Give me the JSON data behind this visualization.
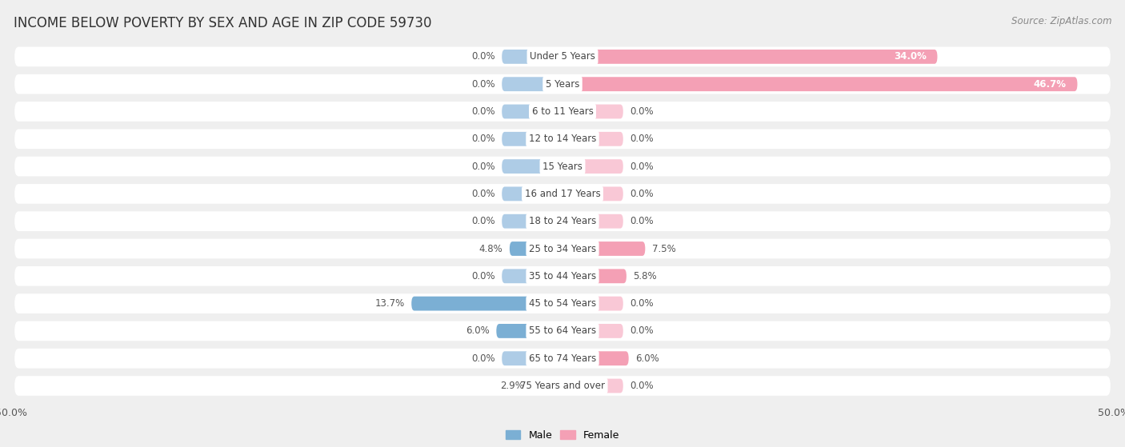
{
  "title": "INCOME BELOW POVERTY BY SEX AND AGE IN ZIP CODE 59730",
  "source": "Source: ZipAtlas.com",
  "categories": [
    "Under 5 Years",
    "5 Years",
    "6 to 11 Years",
    "12 to 14 Years",
    "15 Years",
    "16 and 17 Years",
    "18 to 24 Years",
    "25 to 34 Years",
    "35 to 44 Years",
    "45 to 54 Years",
    "55 to 64 Years",
    "65 to 74 Years",
    "75 Years and over"
  ],
  "male": [
    0.0,
    0.0,
    0.0,
    0.0,
    0.0,
    0.0,
    0.0,
    4.8,
    0.0,
    13.7,
    6.0,
    0.0,
    2.9
  ],
  "female": [
    34.0,
    46.7,
    0.0,
    0.0,
    0.0,
    0.0,
    0.0,
    7.5,
    5.8,
    0.0,
    0.0,
    6.0,
    0.0
  ],
  "male_color": "#7bafd4",
  "female_color": "#f4a0b5",
  "male_color_light": "#aecce6",
  "female_color_light": "#f9c8d6",
  "bar_height": 0.52,
  "stub_size": 5.5,
  "xlim": 50.0,
  "background_color": "#efefef",
  "row_bg_color": "#ffffff",
  "row_border_color": "#e0e0e0",
  "title_fontsize": 12,
  "source_fontsize": 8.5,
  "label_fontsize": 8.5,
  "axis_label_fontsize": 9,
  "legend_fontsize": 9,
  "value_label_color": "#555555",
  "large_bar_threshold": 20.0
}
